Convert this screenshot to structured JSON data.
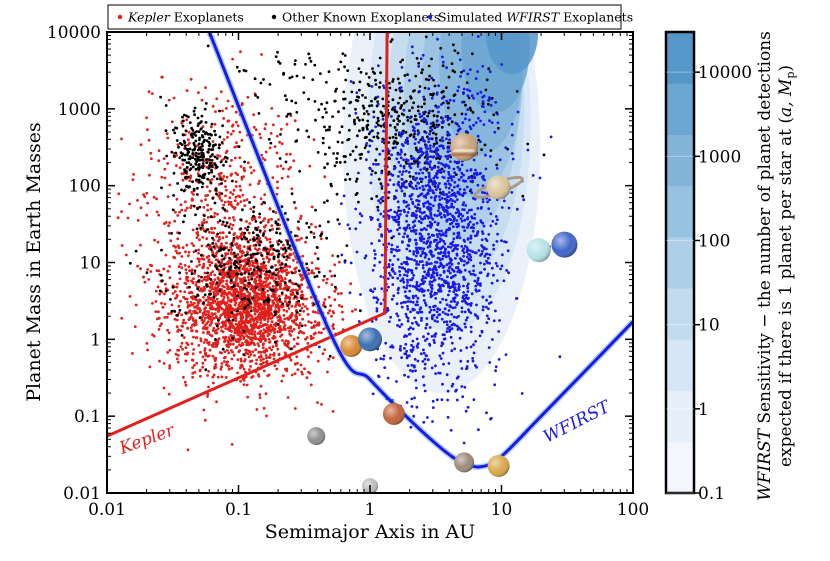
{
  "chart_data": {
    "type": "scatter",
    "title": "",
    "xlabel": "Semimajor Axis in AU",
    "ylabel": "Planet Mass in Earth Masses",
    "xscale": "log",
    "yscale": "log",
    "xlim": [
      0.01,
      100
    ],
    "ylim": [
      0.01,
      10000
    ],
    "x_ticks": [
      "0.01",
      "0.1",
      "1",
      "10",
      "100"
    ],
    "y_ticks": [
      "0.01",
      "0.1",
      "1",
      "10",
      "100",
      "1000",
      "10000"
    ],
    "legend": {
      "placement": "top",
      "entries": [
        {
          "italic": "Kepler",
          "text": " Exoplanets",
          "color": "#e0201b"
        },
        {
          "italic": "",
          "text": "Other Known Exoplanets",
          "color": "#000000"
        },
        {
          "prefix": "Simulated ",
          "italic": "WFIRST",
          "text": " Exoplanets",
          "color": "#1a1ae6"
        }
      ]
    },
    "series": [
      {
        "name": "Kepler Exoplanets",
        "color": "#e0201b",
        "count": 2600,
        "clusters": [
          {
            "a_log_mean": -0.95,
            "a_log_sd": 0.28,
            "m_log_mean": 0.45,
            "m_log_sd": 0.45,
            "weight": 0.82
          },
          {
            "a_log_mean": -1.15,
            "a_log_sd": 0.3,
            "m_log_mean": 1.9,
            "m_log_sd": 0.7,
            "weight": 0.18
          }
        ]
      },
      {
        "name": "Other Known Exoplanets",
        "color": "#000000",
        "count": 1100,
        "clusters": [
          {
            "a_log_mean": -1.3,
            "a_log_sd": 0.1,
            "m_log_mean": 2.4,
            "m_log_sd": 0.3,
            "weight": 0.22
          },
          {
            "a_log_mean": 0.25,
            "a_log_sd": 0.35,
            "m_log_mean": 2.8,
            "m_log_sd": 0.45,
            "weight": 0.38
          },
          {
            "a_log_mean": -0.9,
            "a_log_sd": 0.3,
            "m_log_mean": 1.0,
            "m_log_sd": 0.45,
            "weight": 0.32
          },
          {
            "a_log_mean": -0.5,
            "a_log_sd": 0.4,
            "m_log_mean": 3.2,
            "m_log_sd": 0.3,
            "weight": 0.08
          }
        ]
      },
      {
        "name": "Simulated WFIRST Exoplanets",
        "color": "#1a1ae6",
        "count": 1750,
        "clusters": [
          {
            "a_log_mean": 0.5,
            "a_log_sd": 0.25,
            "m_log_mean": 1.4,
            "m_log_sd": 1.0,
            "weight": 1.0
          }
        ]
      }
    ],
    "kepler_boundary": {
      "label": "Kepler",
      "color": "#e0201b",
      "points": [
        [
          0.01,
          0.055
        ],
        [
          1.3,
          2.2
        ],
        [
          1.35,
          10000
        ]
      ]
    },
    "wfirst_boundary": {
      "label": "WFIRST",
      "color": "#1a1ae6",
      "points": [
        [
          0.06,
          10000
        ],
        [
          0.5,
          1.2
        ],
        [
          1.0,
          0.3
        ],
        [
          2.0,
          0.09
        ],
        [
          3.5,
          0.038
        ],
        [
          5.0,
          0.025
        ],
        [
          7.0,
          0.022
        ],
        [
          10.0,
          0.03
        ],
        [
          20.0,
          0.1
        ],
        [
          50.0,
          0.5
        ],
        [
          100.0,
          1.7
        ]
      ]
    },
    "solar_system": [
      {
        "name": "Mercury",
        "a": 0.39,
        "m": 0.055,
        "color": "#8f8f8f"
      },
      {
        "name": "Venus",
        "a": 0.72,
        "m": 0.82,
        "color": "#d9892f"
      },
      {
        "name": "Earth",
        "a": 1.0,
        "m": 1.0,
        "color": "#3b6fb5"
      },
      {
        "name": "Mars",
        "a": 1.52,
        "m": 0.107,
        "color": "#c4623a"
      },
      {
        "name": "Jupiter",
        "a": 5.2,
        "m": 318,
        "color": "#c9a27a"
      },
      {
        "name": "Saturn",
        "a": 9.5,
        "m": 95,
        "color": "#d9c49a"
      },
      {
        "name": "Uranus",
        "a": 19.2,
        "m": 14.5,
        "color": "#b5e3e8"
      },
      {
        "name": "Neptune",
        "a": 30.1,
        "m": 17.1,
        "color": "#3f64c9"
      },
      {
        "name": "Moon",
        "a": 1.0,
        "m": 0.0123,
        "color": "#bdbdbd"
      },
      {
        "name": "Ganymede",
        "a": 5.2,
        "m": 0.025,
        "color": "#9a8a7a"
      },
      {
        "name": "Titan",
        "a": 9.5,
        "m": 0.0225,
        "color": "#d9a84a"
      }
    ],
    "colorbar": {
      "ticks": [
        "0.1",
        "1",
        "10",
        "100",
        "1000",
        "10000"
      ],
      "range": [
        0.1,
        30000
      ],
      "title_line1_italic": "WFIRST",
      "title_line1": " Sensitivity − the number of planet detections",
      "title_line2": "expected if there is 1 planet per star at (",
      "title_line2_math": "a, M",
      "title_line2_sub": "p",
      "title_line2_end": ")",
      "colors": [
        "#f3f7fc",
        "#e6eff9",
        "#d6e6f4",
        "#c3dbef",
        "#aecfe8",
        "#98c2e1",
        "#82b4da",
        "#6ca6d2",
        "#5697c9"
      ]
    }
  }
}
